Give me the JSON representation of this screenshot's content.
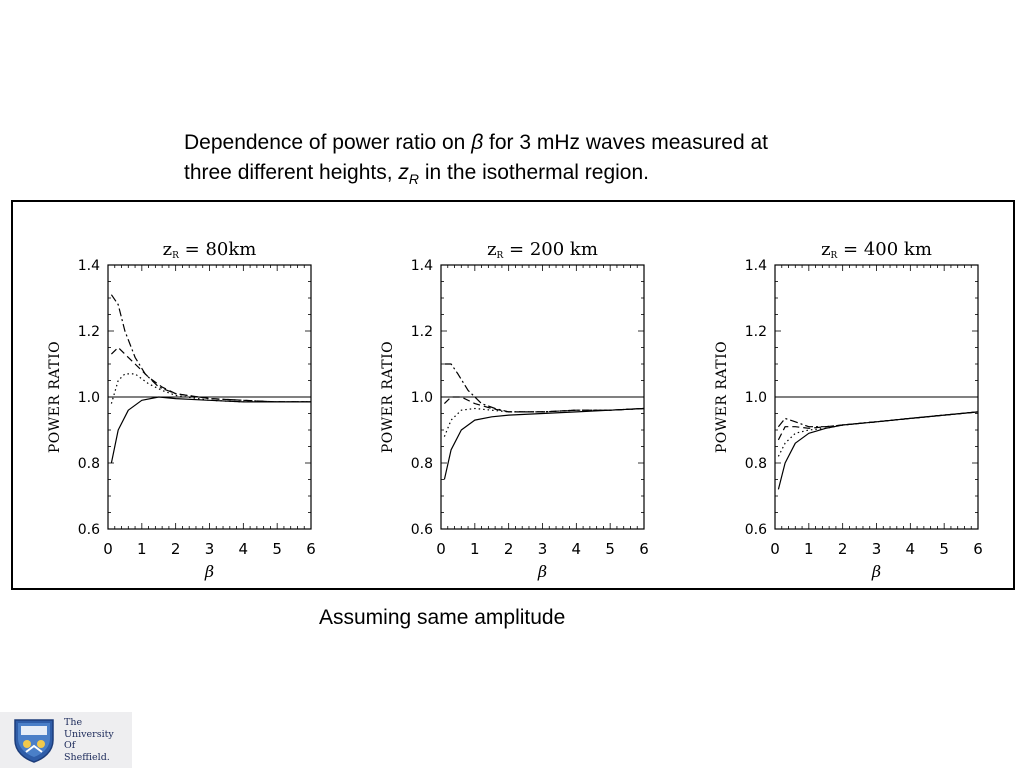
{
  "caption": {
    "line1_pre": "Dependence of power ratio on ",
    "beta": "β",
    "line1_post": " for 3 mHz waves measured at",
    "line2_pre": "three different heights, ",
    "z": "z",
    "sub": "R",
    "line2_post": " in the isothermal region."
  },
  "note": "Assuming same amplitude",
  "logo": {
    "line1": "The",
    "line2": "University",
    "line3": "Of",
    "line4": "Sheffield."
  },
  "chart_data": [
    {
      "type": "line",
      "title_main": "z",
      "title_sub": "R",
      "title_rest": " = 80km",
      "xlabel": "β",
      "ylabel": "POWER RATIO",
      "xlim": [
        0,
        6
      ],
      "ylim": [
        0.6,
        1.4
      ],
      "xticks": [
        "0",
        "1",
        "2",
        "3",
        "4",
        "5",
        "6"
      ],
      "yticks": [
        "0.6",
        "0.8",
        "1.0",
        "1.2",
        "1.4"
      ],
      "reference_line": 1.0,
      "series": [
        {
          "style": "solid",
          "x": [
            0.1,
            0.3,
            0.6,
            1.0,
            1.5,
            2.0,
            3.0,
            4.0,
            5.0,
            6.0
          ],
          "y": [
            0.8,
            0.9,
            0.96,
            0.99,
            1.0,
            0.995,
            0.99,
            0.985,
            0.985,
            0.985
          ]
        },
        {
          "style": "dotted",
          "x": [
            0.1,
            0.3,
            0.5,
            0.8,
            1.2,
            1.6,
            2.0,
            3.0,
            4.0,
            5.0,
            6.0
          ],
          "y": [
            0.98,
            1.05,
            1.07,
            1.07,
            1.04,
            1.02,
            1.005,
            0.99,
            0.985,
            0.985,
            0.985
          ]
        },
        {
          "style": "dashed",
          "x": [
            0.1,
            0.3,
            0.5,
            0.8,
            1.2,
            1.6,
            2.0,
            3.0,
            4.0,
            5.0,
            6.0
          ],
          "y": [
            1.13,
            1.15,
            1.13,
            1.1,
            1.06,
            1.03,
            1.01,
            0.995,
            0.99,
            0.985,
            0.985
          ]
        },
        {
          "style": "dashdot",
          "x": [
            0.1,
            0.3,
            0.5,
            0.8,
            1.1,
            1.5,
            2.0,
            3.0,
            4.0,
            5.0,
            6.0
          ],
          "y": [
            1.31,
            1.28,
            1.2,
            1.12,
            1.07,
            1.03,
            1.01,
            0.995,
            0.99,
            0.985,
            0.985
          ]
        }
      ]
    },
    {
      "type": "line",
      "title_main": "z",
      "title_sub": "R",
      "title_rest": " = 200 km",
      "xlabel": "β",
      "ylabel": "POWER RATIO",
      "xlim": [
        0,
        6
      ],
      "ylim": [
        0.6,
        1.4
      ],
      "xticks": [
        "0",
        "1",
        "2",
        "3",
        "4",
        "5",
        "6"
      ],
      "yticks": [
        "0.6",
        "0.8",
        "1.0",
        "1.2",
        "1.4"
      ],
      "reference_line": 1.0,
      "series": [
        {
          "style": "solid",
          "x": [
            0.1,
            0.3,
            0.6,
            1.0,
            1.5,
            2.0,
            3.0,
            4.0,
            5.0,
            6.0
          ],
          "y": [
            0.75,
            0.84,
            0.9,
            0.93,
            0.94,
            0.945,
            0.95,
            0.955,
            0.96,
            0.965
          ]
        },
        {
          "style": "dotted",
          "x": [
            0.1,
            0.3,
            0.6,
            1.0,
            1.5,
            2.0,
            3.0,
            4.0,
            5.0,
            6.0
          ],
          "y": [
            0.88,
            0.93,
            0.96,
            0.965,
            0.96,
            0.955,
            0.955,
            0.96,
            0.96,
            0.965
          ]
        },
        {
          "style": "dashed",
          "x": [
            0.1,
            0.3,
            0.6,
            1.0,
            1.5,
            2.0,
            3.0,
            4.0,
            5.0,
            6.0
          ],
          "y": [
            0.98,
            1.0,
            1.0,
            0.98,
            0.965,
            0.955,
            0.955,
            0.96,
            0.96,
            0.965
          ]
        },
        {
          "style": "dashdot",
          "x": [
            0.1,
            0.3,
            0.5,
            0.8,
            1.2,
            1.6,
            2.0,
            3.0,
            4.0,
            5.0,
            6.0
          ],
          "y": [
            1.1,
            1.1,
            1.07,
            1.02,
            0.98,
            0.965,
            0.955,
            0.955,
            0.96,
            0.96,
            0.965
          ]
        }
      ]
    },
    {
      "type": "line",
      "title_main": "z",
      "title_sub": "R",
      "title_rest": " = 400 km",
      "xlabel": "β",
      "ylabel": "POWER RATIO",
      "xlim": [
        0,
        6
      ],
      "ylim": [
        0.6,
        1.4
      ],
      "xticks": [
        "0",
        "1",
        "2",
        "3",
        "4",
        "5",
        "6"
      ],
      "yticks": [
        "0.6",
        "0.8",
        "1.0",
        "1.2",
        "1.4"
      ],
      "reference_line": 1.0,
      "series": [
        {
          "style": "solid",
          "x": [
            0.1,
            0.3,
            0.6,
            1.0,
            1.5,
            2.0,
            3.0,
            4.0,
            5.0,
            6.0
          ],
          "y": [
            0.72,
            0.8,
            0.86,
            0.89,
            0.905,
            0.915,
            0.925,
            0.935,
            0.945,
            0.955
          ]
        },
        {
          "style": "dotted",
          "x": [
            0.1,
            0.3,
            0.6,
            1.0,
            1.5,
            2.0,
            3.0,
            4.0,
            5.0,
            6.0
          ],
          "y": [
            0.82,
            0.86,
            0.89,
            0.9,
            0.905,
            0.915,
            0.925,
            0.935,
            0.945,
            0.955
          ]
        },
        {
          "style": "dashed",
          "x": [
            0.1,
            0.3,
            0.6,
            1.0,
            1.5,
            2.0,
            3.0,
            4.0,
            5.0,
            6.0
          ],
          "y": [
            0.87,
            0.91,
            0.91,
            0.905,
            0.91,
            0.915,
            0.925,
            0.935,
            0.945,
            0.955
          ]
        },
        {
          "style": "dashdot",
          "x": [
            0.1,
            0.3,
            0.6,
            1.0,
            1.5,
            2.0,
            3.0,
            4.0,
            5.0,
            6.0
          ],
          "y": [
            0.91,
            0.935,
            0.925,
            0.91,
            0.91,
            0.915,
            0.925,
            0.935,
            0.945,
            0.955
          ]
        }
      ]
    }
  ]
}
